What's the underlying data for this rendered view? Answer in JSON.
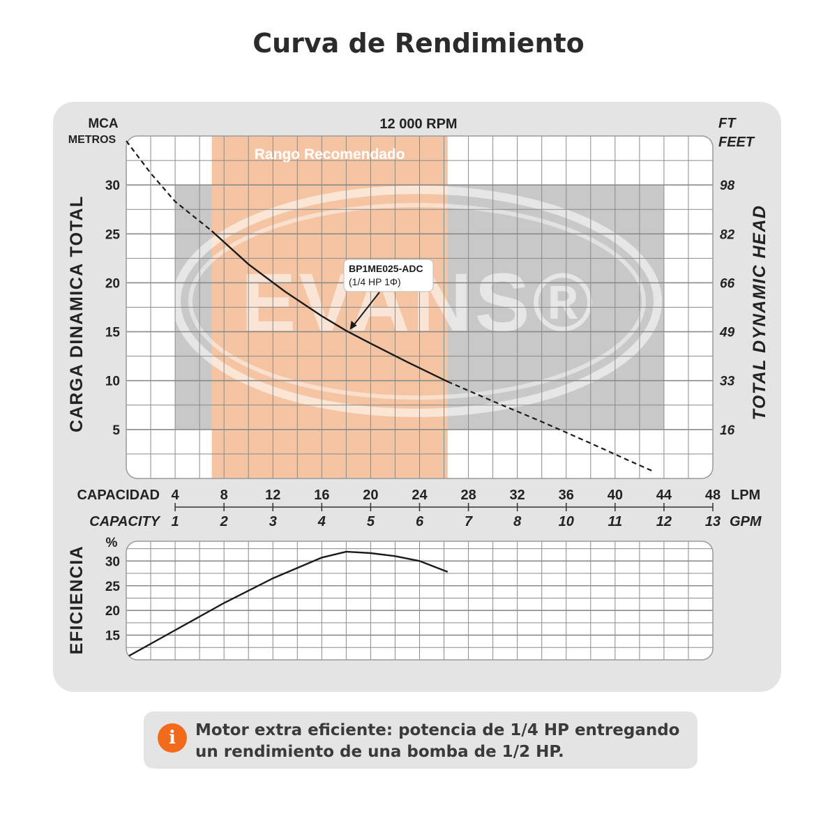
{
  "title": "Curva de Rendimiento",
  "chart_data": [
    {
      "type": "line",
      "header": {
        "rpm": "12 000 RPM",
        "left_unit_top": "MCA",
        "left_unit_bottom": "METROS",
        "right_unit_top": "FT",
        "right_unit_bottom": "FEET"
      },
      "ylabel": "CARGA DINAMICA TOTAL",
      "ylabel_right": "TOTAL DYNAMIC HEAD",
      "ylim": [
        0,
        35
      ],
      "yticks": [
        5,
        10,
        15,
        20,
        25,
        30
      ],
      "yticks_right": [
        "16",
        "33",
        "49",
        "66",
        "82",
        "98"
      ],
      "xlim": [
        0,
        48
      ],
      "x_axis_primary": {
        "label": "CAPACIDAD",
        "unit": "LPM",
        "ticks": [
          "4",
          "8",
          "12",
          "16",
          "20",
          "24",
          "28",
          "32",
          "36",
          "40",
          "44",
          "48"
        ],
        "tick_values": [
          4,
          8,
          12,
          16,
          20,
          24,
          28,
          32,
          36,
          40,
          44,
          48
        ]
      },
      "x_axis_secondary": {
        "label": "CAPACITY",
        "unit": "GPM",
        "ticks": [
          "1",
          "2",
          "3",
          "4",
          "5",
          "6",
          "7",
          "8",
          "10",
          "11",
          "12",
          "13"
        ]
      },
      "recommended_range": {
        "label": "Rango Recomendado",
        "x": [
          7,
          26.3
        ]
      },
      "series": [
        {
          "name": "BP1ME025-ADC",
          "subtitle": "(1/4 HP 1Φ)",
          "points": [
            [
              0,
              34.5
            ],
            [
              2,
              31.2
            ],
            [
              4,
              28.3
            ],
            [
              7,
              25.3
            ],
            [
              10,
              21.9
            ],
            [
              13,
              19.1
            ],
            [
              16,
              16.6
            ],
            [
              18,
              15.1
            ],
            [
              20,
              13.8
            ],
            [
              23,
              11.9
            ],
            [
              26.3,
              9.9
            ],
            [
              30,
              7.9
            ],
            [
              34,
              5.8
            ],
            [
              38,
              3.6
            ],
            [
              41,
              1.9
            ],
            [
              43,
              0.8
            ]
          ],
          "solid_range": [
            7,
            26.3
          ],
          "annotation_at": [
            18.3,
            15.2
          ]
        }
      ],
      "grid": true,
      "watermark": "EVANS®",
      "colors": {
        "range": "#f5c5a3",
        "gray_band": "#c8c8c8",
        "curve": "#1a1a1a",
        "grid": "#8a8a8a"
      }
    },
    {
      "type": "line",
      "ylabel": "EFICIENCIA",
      "unit": "%",
      "ylim": [
        10,
        34
      ],
      "yticks": [
        15,
        20,
        25,
        30
      ],
      "xlim": [
        0,
        48
      ],
      "grid": true,
      "series": [
        {
          "name": "",
          "points": [
            [
              0,
              10.5
            ],
            [
              4,
              16
            ],
            [
              8,
              21.5
            ],
            [
              12,
              26.5
            ],
            [
              16,
              30.7
            ],
            [
              18,
              31.9
            ],
            [
              20,
              31.6
            ],
            [
              22,
              31
            ],
            [
              24,
              30
            ],
            [
              26.3,
              27.8
            ]
          ]
        }
      ]
    }
  ],
  "note": {
    "icon": "info-icon",
    "icon_glyph": "i",
    "line1": "Motor extra eficiente: potencia de 1/4 HP entregando",
    "line2": "un rendimiento de una bomba de 1/2 HP."
  }
}
